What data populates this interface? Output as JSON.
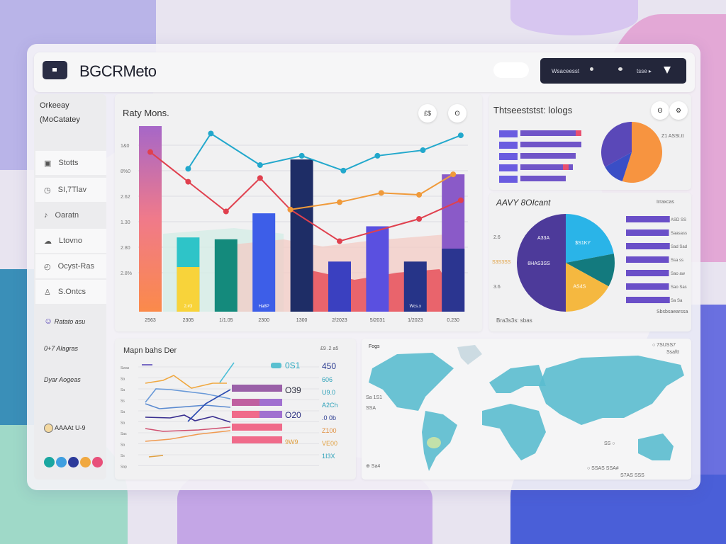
{
  "header": {
    "title": "BGCRMeto",
    "toolbar_text": "Wsaceesst",
    "toolbar_link": "tsse ▸",
    "filter_icon": "filter-icon"
  },
  "sidebar": {
    "heading1": "Orkeeay",
    "heading2": "(MoCatatey",
    "items": [
      {
        "label": "Stotts",
        "icon": "lock-icon"
      },
      {
        "label": "SI,7Tlav",
        "icon": "clock-icon"
      },
      {
        "label": "Oaratn",
        "icon": "bell-icon"
      },
      {
        "label": "Ltovno",
        "icon": "cloud-icon"
      },
      {
        "label": "Ocyst-Ras",
        "icon": "timer-icon"
      },
      {
        "label": "S.Ontcs",
        "icon": "user-icon"
      }
    ],
    "links": [
      "Ratato asu",
      "0+7 Alagras",
      "Dyar Aogeas"
    ],
    "user": "AAAAt U-9",
    "app_colors": [
      "#1aa6a0",
      "#3f9fe0",
      "#2c3a9a",
      "#f0a840",
      "#e8507a"
    ]
  },
  "main_chart": {
    "title": "Raty Mons.",
    "buttons": [
      "£$",
      "ʘ"
    ],
    "y_ticks": [
      "1&0",
      "8%0",
      "2.62",
      "1.30",
      "2.80",
      "2.8%"
    ],
    "categories": [
      "2563",
      "2305",
      "1/1.05",
      "2300",
      "1300",
      "2/2023",
      "5/2031",
      "1/2023",
      "0.230"
    ],
    "bar_values": [
      100,
      40,
      39,
      53,
      82,
      27,
      46,
      27,
      74
    ],
    "bar_colors": [
      "#b06fc6",
      "#2ec4c8",
      "#148a7c",
      "#3d5ee8",
      "#1e2d66",
      "#3a40c0",
      "#5a50e0",
      "#263488",
      "#8a5ac8"
    ],
    "bar_labels": [
      "",
      "2.#3",
      "",
      "Ha8P",
      "",
      "",
      "",
      "Wcs.x",
      ""
    ],
    "lines": [
      {
        "color": "#22a8cc",
        "points": [
          [
            1,
            77
          ],
          [
            1.6,
            96
          ],
          [
            2.9,
            79
          ],
          [
            4,
            84
          ],
          [
            5.1,
            76
          ],
          [
            6,
            84
          ],
          [
            7.2,
            87
          ],
          [
            8.2,
            95
          ]
        ]
      },
      {
        "color": "#e0404e",
        "points": [
          [
            0,
            86
          ],
          [
            1,
            70
          ],
          [
            2,
            54
          ],
          [
            2.9,
            72
          ],
          [
            3.7,
            55
          ],
          [
            5,
            38
          ],
          [
            7.1,
            50
          ],
          [
            8.2,
            60
          ]
        ]
      },
      {
        "color": "#f09a3a",
        "points": [
          [
            3.7,
            55
          ],
          [
            5,
            59
          ],
          [
            6.1,
            64
          ],
          [
            7.1,
            63
          ],
          [
            8,
            74
          ]
        ]
      }
    ]
  },
  "top_right": {
    "title": "Thtseeststst: lologs",
    "buttons": [
      "ʘ",
      "⚙"
    ],
    "pie_label": "Z1 ASSt.tt",
    "bars": [
      0.86,
      0.86,
      0.78,
      0.74,
      0.64
    ],
    "pie": [
      {
        "value": 55,
        "color": "#f79440"
      },
      {
        "value": 12,
        "color": "#3a4ec6"
      },
      {
        "value": 33,
        "color": "#5a48b8"
      }
    ]
  },
  "mid_right": {
    "title": "AAVY 8OIcant",
    "legend": "Irraxcas",
    "footer_left": "Bra3s3s: sbas",
    "footer_right": "Sbsbsaearssa",
    "side_labels": [
      "2.6",
      "S3S3SS",
      "3.6"
    ],
    "pie": [
      {
        "value": 22,
        "color": "#2ab4e8",
        "label": "$S1KY"
      },
      {
        "value": 11,
        "color": "#137a7e",
        "label": ""
      },
      {
        "value": 17,
        "color": "#f5b840",
        "label": "AS4S"
      },
      {
        "value": 50,
        "color": "#4d3a9a",
        "label": "8HAS3SS"
      }
    ],
    "pie_top_label": "A33A",
    "bars": [
      {
        "v": 0.98,
        "l": "ASD SS"
      },
      {
        "v": 0.96,
        "l": "Saasass"
      },
      {
        "v": 0.98,
        "l": "Sad Sad"
      },
      {
        "v": 0.96,
        "l": "Ssa ss"
      },
      {
        "v": 0.96,
        "l": "Sao aw"
      },
      {
        "v": 0.96,
        "l": "Sao Sas"
      },
      {
        "v": 0.98,
        "l": "Sa Sa"
      }
    ]
  },
  "bottom_left": {
    "title": "Mapn bahs Der",
    "corner": "£9 .2 a5",
    "row_labels": [
      "Swas",
      "Sa",
      "Sa",
      "Ss",
      "Sa",
      "Sa",
      "Sas",
      "Sa",
      "Ss",
      "Sap"
    ],
    "mid_values": [
      {
        "t": "0S1",
        "c": "#2aa8c0"
      },
      {
        "t": "O39",
        "c": "#2a2c3c"
      },
      {
        "t": "O20",
        "c": "#2a2f80"
      },
      {
        "t": "9W9",
        "c": "#e0a040"
      }
    ],
    "right_values": [
      {
        "t": "450",
        "c": "#2a3a90"
      },
      {
        "t": "606",
        "c": "#2aa0b8"
      },
      {
        "t": "U9.0",
        "c": "#2aa0b8"
      },
      {
        "t": "A2Ch",
        "c": "#2aa0b8"
      },
      {
        "t": ".0 0b",
        "c": "#2a3a90"
      },
      {
        "t": "Z100",
        "c": "#e09040"
      },
      {
        "t": "VE00",
        "c": "#e0a040"
      },
      {
        "t": "1I3X",
        "c": "#2aa0b8"
      }
    ]
  },
  "map": {
    "title": "Fogs",
    "corner": "○ 7SUSS7",
    "corner2": "Ssaftt",
    "left1": "Sa 1S1",
    "left2": "SSA",
    "bottom_left": "⊕ Sa4",
    "bottom_center": "○ SSAS SSA#",
    "bottom_center2": "S7AS SSS",
    "marker": "SS ○",
    "land_color": "#5bbccf"
  }
}
